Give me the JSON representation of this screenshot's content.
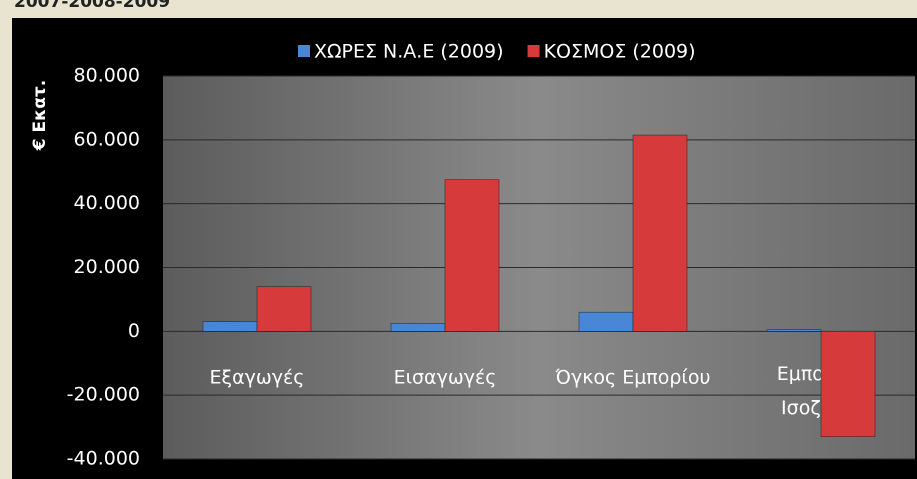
{
  "heading": "2007-2008-2009",
  "chart_data": {
    "type": "bar",
    "ylabel": "€ Εκατ.",
    "categories": [
      "Εξαγωγές",
      "Εισαγωγές",
      "Όγκος Εμπορίου",
      "Εμπορικό Ισοζύγιο"
    ],
    "series": [
      {
        "name": "ΧΩΡΕΣ Ν.Α.Ε (2009)",
        "color": "#4a86d6",
        "values": [
          3000,
          2500,
          6000,
          500
        ]
      },
      {
        "name": "ΚΟΣΜΟΣ (2009)",
        "color": "#d63a3a",
        "values": [
          14000,
          47500,
          61500,
          -33000
        ]
      }
    ],
    "ylim": [
      -40000,
      80000
    ],
    "yticks": [
      {
        "value": -40000,
        "label": "-40.000"
      },
      {
        "value": -20000,
        "label": "-20.000"
      },
      0,
      {
        "value": 20000,
        "label": "20.000"
      },
      {
        "value": 40000,
        "label": "40.000"
      },
      {
        "value": 60000,
        "label": "60.000"
      },
      {
        "value": 80000,
        "label": "80.000"
      }
    ],
    "grid": true,
    "legend": "top"
  }
}
